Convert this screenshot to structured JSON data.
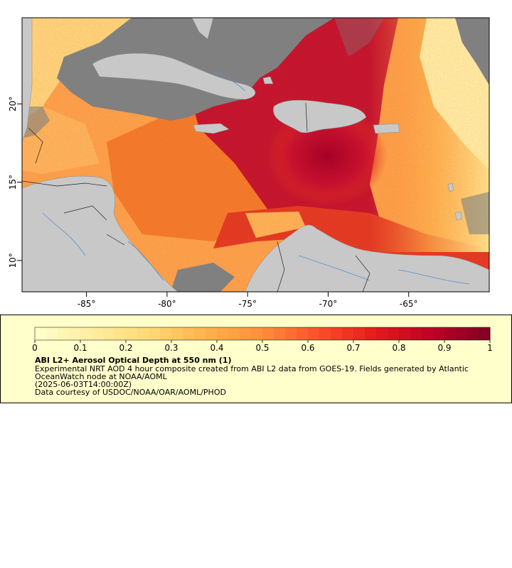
{
  "map": {
    "lon_ticks": [
      {
        "lon": -85,
        "label": "-85°"
      },
      {
        "lon": -80,
        "label": "-80°"
      },
      {
        "lon": -75,
        "label": "-75°"
      },
      {
        "lon": -70,
        "label": "-70°"
      },
      {
        "lon": -65,
        "label": "-65°"
      }
    ],
    "lat_ticks": [
      {
        "lat": 20,
        "label": "20°"
      },
      {
        "lat": 15,
        "label": "15°"
      },
      {
        "lat": 10,
        "label": "10°"
      }
    ],
    "extent": {
      "lon_min": -89,
      "lon_max": -60,
      "lat_min": 8,
      "lat_max": 25.5
    },
    "colors": {
      "land": "#c8c8c8",
      "nodata": "#808080",
      "rivers": "#5b8fd0",
      "borders": "#000000"
    }
  },
  "legend": {
    "ticks": [
      "0",
      "0.1",
      "0.2",
      "0.3",
      "0.4",
      "0.5",
      "0.6",
      "0.7",
      "0.8",
      "0.9",
      "1"
    ],
    "title": "ABI L2+ Aerosol Optical Depth at 550 nm (1)",
    "description": "Experimental NRT AOD 4 hour composite created from ABI L2 data from GOES-19. Fields generated by Atlantic OceanWatch node at NOAA/AOML",
    "date": "(2025-06-03T14:00:00Z)",
    "credit": "Data courtesy of USDOC/NOAA/OAR/AOML/PHOD",
    "range": [
      0,
      1
    ],
    "colors": [
      "#ffffcc",
      "#ffeda0",
      "#fed976",
      "#feb24c",
      "#fd8d3c",
      "#fc4e2a",
      "#e31a1c",
      "#bd0026",
      "#800026"
    ]
  }
}
